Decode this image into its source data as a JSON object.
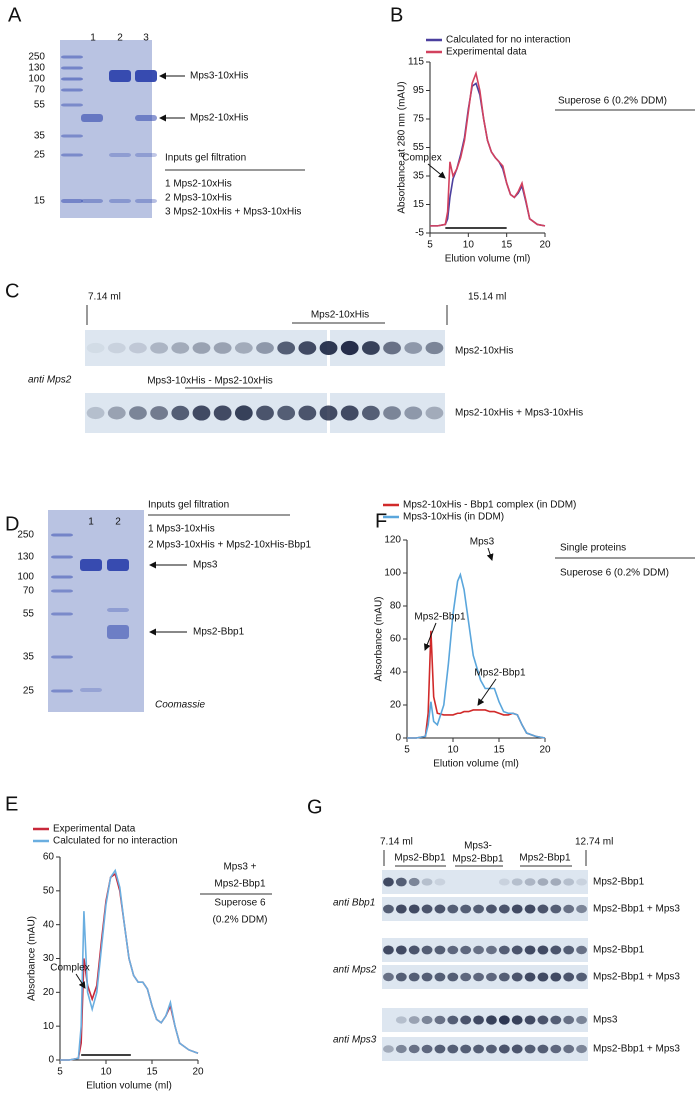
{
  "panel_labels": [
    "A",
    "B",
    "C",
    "D",
    "F",
    "E",
    "G"
  ],
  "gel_a": {
    "ladder": [
      "250",
      "130",
      "100",
      "70",
      "55",
      "35",
      "25",
      "15"
    ],
    "lanes": [
      "1",
      "2",
      "3"
    ],
    "band_labels": [
      "Mps3-10xHis",
      "Mps2-10xHis"
    ],
    "inputs_title": "Inputs gel filtration",
    "inputs": [
      "1 Mps2-10xHis",
      "2 Mps3-10xHis",
      "3 Mps2-10xHis + Mps3-10xHis"
    ]
  },
  "blot_c": {
    "start": "7.14 ml",
    "end": "15.14 ml",
    "peak_labels": [
      "Mps2-10xHis",
      "Mps3-10xHis - Mps2-10xHis"
    ],
    "antibody": "anti Mps2",
    "rows": [
      "Mps2-10xHis",
      "Mps2-10xHis + Mps3-10xHis"
    ]
  },
  "gel_d": {
    "ladder": [
      "250",
      "130",
      "100",
      "70",
      "55",
      "35",
      "25"
    ],
    "lanes": [
      "1",
      "2"
    ],
    "inputs_title": "Inputs gel filtration",
    "inputs": [
      "1 Mps3-10xHis",
      "2 Mps3-10xHis + Mps2-10xHis-Bbp1"
    ],
    "band_labels": [
      "Mps3",
      "Mps2-Bbp1"
    ],
    "stain": "Coomassie"
  },
  "blot_g": {
    "start": "7.14 ml",
    "end": "12.74 ml",
    "fractions": [
      "Mps2-Bbp1",
      "Mps3-",
      "Mps2-Bbp1",
      "Mps2-Bbp1"
    ],
    "antibodies": [
      "anti Bbp1",
      "anti Mps2",
      "anti Mps3"
    ],
    "rows": [
      "Mps2-Bbp1",
      "Mps2-Bbp1 + Mps3",
      "Mps2-Bbp1",
      "Mps2-Bbp1 + Mps3",
      "Mps3",
      "Mps2-Bbp1 + Mps3"
    ]
  },
  "chart_data": [
    {
      "type": "line",
      "x_label": "Elution volume (ml)",
      "y_label": "Absorbance at 280 nm (mAU)",
      "xlim": [
        5,
        20
      ],
      "ylim": [
        -5,
        115
      ],
      "xticks": [
        5,
        10,
        15,
        20
      ],
      "yticks": [
        -5,
        15,
        35,
        55,
        75,
        95,
        115
      ],
      "annotations": [
        "Complex"
      ],
      "side_labels": [
        "Superose 6 (0.2% DDM)"
      ],
      "x": [
        5,
        6,
        7,
        7.3,
        7.6,
        8,
        8.5,
        9,
        9.5,
        10,
        10.5,
        11,
        11.5,
        12,
        12.5,
        13,
        13.5,
        14,
        14.5,
        15,
        15.5,
        16,
        16.5,
        17,
        17.5,
        18,
        19,
        20
      ],
      "series": [
        {
          "name": "Calculated for no interaction",
          "color": "#4b3f9e",
          "values": [
            0,
            0,
            1,
            5,
            20,
            33,
            40,
            50,
            62,
            82,
            98,
            100,
            92,
            75,
            60,
            52,
            48,
            45,
            40,
            30,
            22,
            20,
            23,
            28,
            17,
            5,
            1,
            0
          ]
        },
        {
          "name": "Experimental data",
          "color": "#d2415e",
          "values": [
            0,
            0,
            1,
            10,
            45,
            35,
            40,
            48,
            60,
            80,
            100,
            107,
            95,
            75,
            60,
            52,
            48,
            45,
            42,
            30,
            22,
            20,
            24,
            30,
            18,
            5,
            1,
            0
          ]
        }
      ]
    },
    {
      "type": "line",
      "x_label": "Elution volume (ml)",
      "y_label": "Absorbance (mAU)",
      "xlim": [
        5,
        20
      ],
      "ylim": [
        0,
        120
      ],
      "xticks": [
        5,
        10,
        15,
        20
      ],
      "yticks": [
        0,
        20,
        40,
        60,
        80,
        100,
        120
      ],
      "annotations": [
        "Mps3",
        "Mps2-Bbp1",
        "Mps2-Bbp1"
      ],
      "side_labels": [
        "Single proteins",
        "Superose 6 (0.2% DDM)"
      ],
      "x": [
        5,
        6,
        7,
        7.3,
        7.6,
        7.9,
        8.3,
        9,
        9.5,
        10,
        10.5,
        10.8,
        11.2,
        11.7,
        12.2,
        13,
        13.5,
        14,
        14.5,
        15,
        15.5,
        16,
        16.5,
        17,
        17.5,
        18,
        19,
        20
      ],
      "series": [
        {
          "name": "Mps2-10xHis - Bbp1 complex (in DDM)",
          "color": "#d12a2a",
          "values": [
            0,
            0,
            1,
            15,
            65,
            25,
            15,
            14,
            14,
            14,
            15,
            15,
            16,
            16,
            17,
            17,
            17,
            16,
            16,
            15,
            14,
            14,
            15,
            14,
            8,
            3,
            1,
            0
          ]
        },
        {
          "name": "Mps3-10xHis (in DDM)",
          "color": "#5aa6dc",
          "values": [
            0,
            0,
            1,
            8,
            22,
            10,
            8,
            20,
            45,
            75,
            95,
            99,
            90,
            70,
            50,
            35,
            30,
            30,
            30,
            22,
            16,
            15,
            15,
            14,
            8,
            3,
            1,
            0
          ]
        }
      ]
    },
    {
      "type": "line",
      "x_label": "Elution volume (ml)",
      "y_label": "Absorbance (mAU)",
      "xlim": [
        5,
        20
      ],
      "ylim": [
        0,
        60
      ],
      "xticks": [
        5,
        10,
        15,
        20
      ],
      "yticks": [
        0,
        10,
        20,
        30,
        40,
        50,
        60
      ],
      "annotations": [
        "Complex"
      ],
      "side_labels": [
        "Mps3 +",
        "Mps2-Bbp1",
        "Superose 6",
        "(0.2% DDM)"
      ],
      "x": [
        5,
        6,
        7,
        7.3,
        7.6,
        8,
        8.5,
        9,
        9.5,
        10,
        10.5,
        11,
        11.5,
        12,
        12.5,
        13,
        13.5,
        14,
        14.5,
        15,
        15.5,
        16,
        16.5,
        17,
        17.5,
        18,
        19,
        20
      ],
      "series": [
        {
          "name": "Experimental Data",
          "color": "#c8283a",
          "values": [
            0,
            0,
            0.5,
            5,
            30,
            22,
            18,
            22,
            35,
            47,
            54,
            55,
            50,
            40,
            30,
            25,
            23,
            23,
            21,
            16,
            12,
            11,
            13,
            16,
            10,
            5,
            3,
            2
          ]
        },
        {
          "name": "Calculated for no interaction",
          "color": "#6aaee0",
          "values": [
            0,
            0,
            0.5,
            10,
            44,
            20,
            15,
            20,
            33,
            46,
            54,
            56,
            51,
            40,
            30,
            25,
            23,
            23,
            21,
            16,
            12,
            11,
            13,
            17,
            10,
            5,
            3,
            2
          ]
        }
      ]
    }
  ]
}
